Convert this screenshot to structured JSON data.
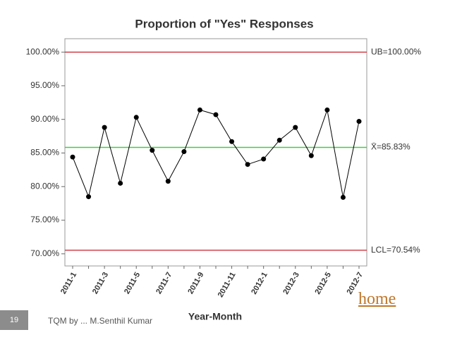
{
  "chart_data": {
    "type": "line",
    "title": "Proportion of \"Yes\" Responses",
    "x_label": "Year-Month",
    "categories": [
      "2011-1",
      null,
      "2011-3",
      null,
      "2011-5",
      null,
      "2011-7",
      null,
      "2011-9",
      null,
      "2011-11",
      null,
      "2012-1",
      null,
      "2012-3",
      null,
      "2012-5",
      null,
      "2012-7"
    ],
    "series": [
      {
        "name": "Proportion",
        "color": "#000000",
        "values": [
          84.4,
          78.5,
          88.8,
          80.5,
          90.3,
          85.4,
          80.8,
          85.2,
          91.4,
          90.7,
          86.7,
          83.3,
          84.1,
          86.9,
          88.8,
          84.6,
          91.4,
          78.4,
          89.7
        ]
      }
    ],
    "ylim": [
      68.2,
      102
    ],
    "yticks": [
      {
        "value": 70,
        "label": "70.00%"
      },
      {
        "value": 75,
        "label": "75.00%"
      },
      {
        "value": 80,
        "label": "80.00%"
      },
      {
        "value": 85,
        "label": "85.00%"
      },
      {
        "value": 90,
        "label": "90.00%"
      },
      {
        "value": 95,
        "label": "95.00%"
      },
      {
        "value": 100,
        "label": "100.00%"
      }
    ],
    "reference_lines": [
      {
        "value": 100,
        "label": "UB=100.00%",
        "color": "#d0404a"
      },
      {
        "value": 85.83,
        "label": "X̄=85.83%",
        "color": "#3fcf3f"
      },
      {
        "value": 70.54,
        "label": "LCL=70.54%",
        "color": "#d0404a"
      }
    ]
  },
  "footer": {
    "page_number": "19",
    "text": "TQM by ... M.Senthil Kumar",
    "link": "home"
  }
}
